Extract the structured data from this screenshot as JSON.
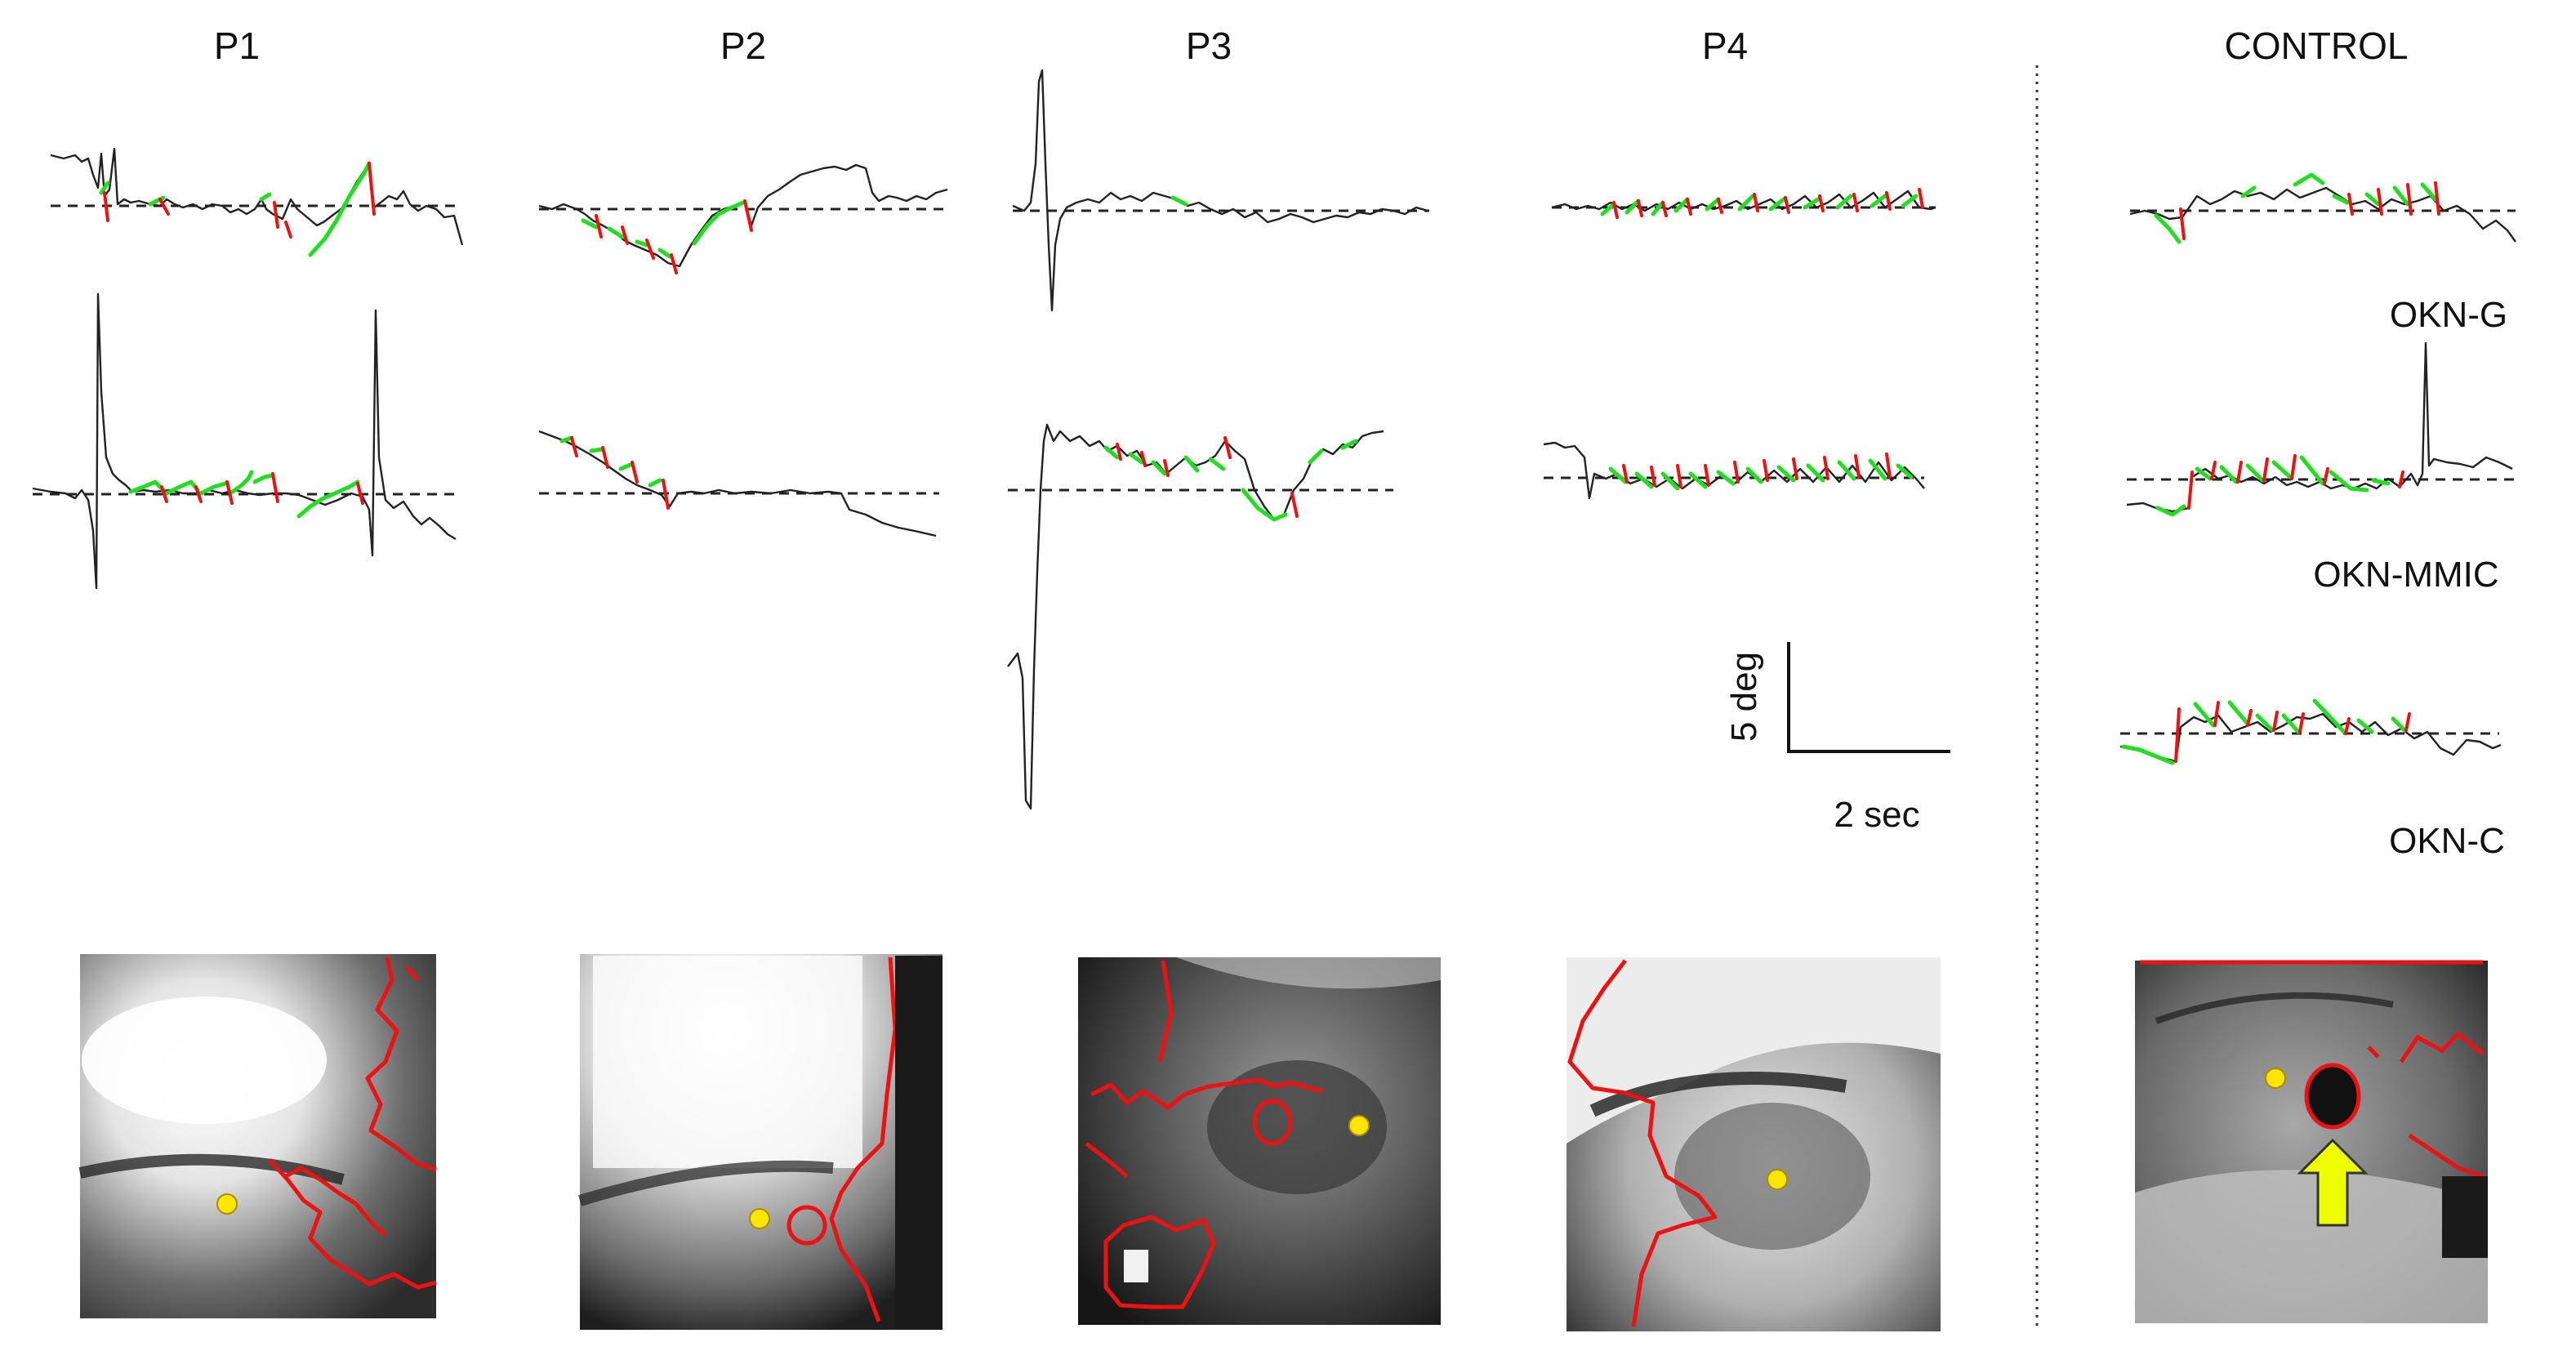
{
  "panels": [
    "P1",
    "P2",
    "P3",
    "P4",
    "CONTROL"
  ],
  "control_conditions": [
    "OKN-G",
    "OKN-MMIC",
    "OKN-C"
  ],
  "scale_bar": {
    "vertical": "5 deg",
    "horizontal": "2 sec"
  },
  "colors": {
    "slow_phase": "#22dd22",
    "fast_phase": "#ee1111",
    "trace": "#222222",
    "pupil_center_marker": "#ffe600",
    "segmentation_contour": "#ee1111",
    "arrow": "#eeff00"
  }
}
